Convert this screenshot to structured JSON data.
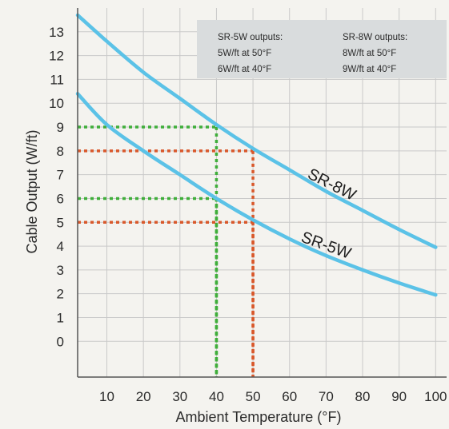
{
  "chart_data": {
    "type": "line",
    "xlabel": "Ambient Temperature (°F)",
    "ylabel": "Cable Output (W/ft)",
    "xlim": [
      2,
      103
    ],
    "ylim": [
      -1.5,
      14
    ],
    "x_ticks": [
      10,
      20,
      30,
      40,
      50,
      60,
      70,
      80,
      90,
      100
    ],
    "y_ticks": [
      0,
      1,
      2,
      3,
      4,
      5,
      6,
      7,
      8,
      9,
      10,
      11,
      12,
      13
    ],
    "grid": true,
    "series": [
      {
        "name": "SR-8W",
        "color": "#5bc2e7",
        "x": [
          2,
          10,
          20,
          30,
          40,
          50,
          60,
          70,
          80,
          90,
          100
        ],
        "y": [
          13.7,
          12.6,
          11.3,
          10.2,
          9.1,
          8.1,
          7.2,
          6.3,
          5.5,
          4.7,
          3.95
        ]
      },
      {
        "name": "SR-5W",
        "color": "#5bc2e7",
        "x": [
          2,
          10,
          20,
          30,
          40,
          50,
          60,
          70,
          80,
          90,
          100
        ],
        "y": [
          10.4,
          9.1,
          8.0,
          7.0,
          6.0,
          5.1,
          4.3,
          3.6,
          3.0,
          2.45,
          1.95
        ]
      }
    ],
    "reference_lines": [
      {
        "x": 40,
        "y": 9,
        "color": "#3fae3a"
      },
      {
        "x": 40,
        "y": 6,
        "color": "#3fae3a"
      },
      {
        "x": 50,
        "y": 8,
        "color": "#d9582b"
      },
      {
        "x": 50,
        "y": 5,
        "color": "#d9582b"
      }
    ],
    "annotation": {
      "col1": [
        "SR-5W outputs:",
        "5W/ft at 50°F",
        "6W/ft at 40°F"
      ],
      "col2": [
        "SR-8W outputs:",
        "8W/ft at 50°F",
        "9W/ft at 40°F"
      ]
    }
  }
}
